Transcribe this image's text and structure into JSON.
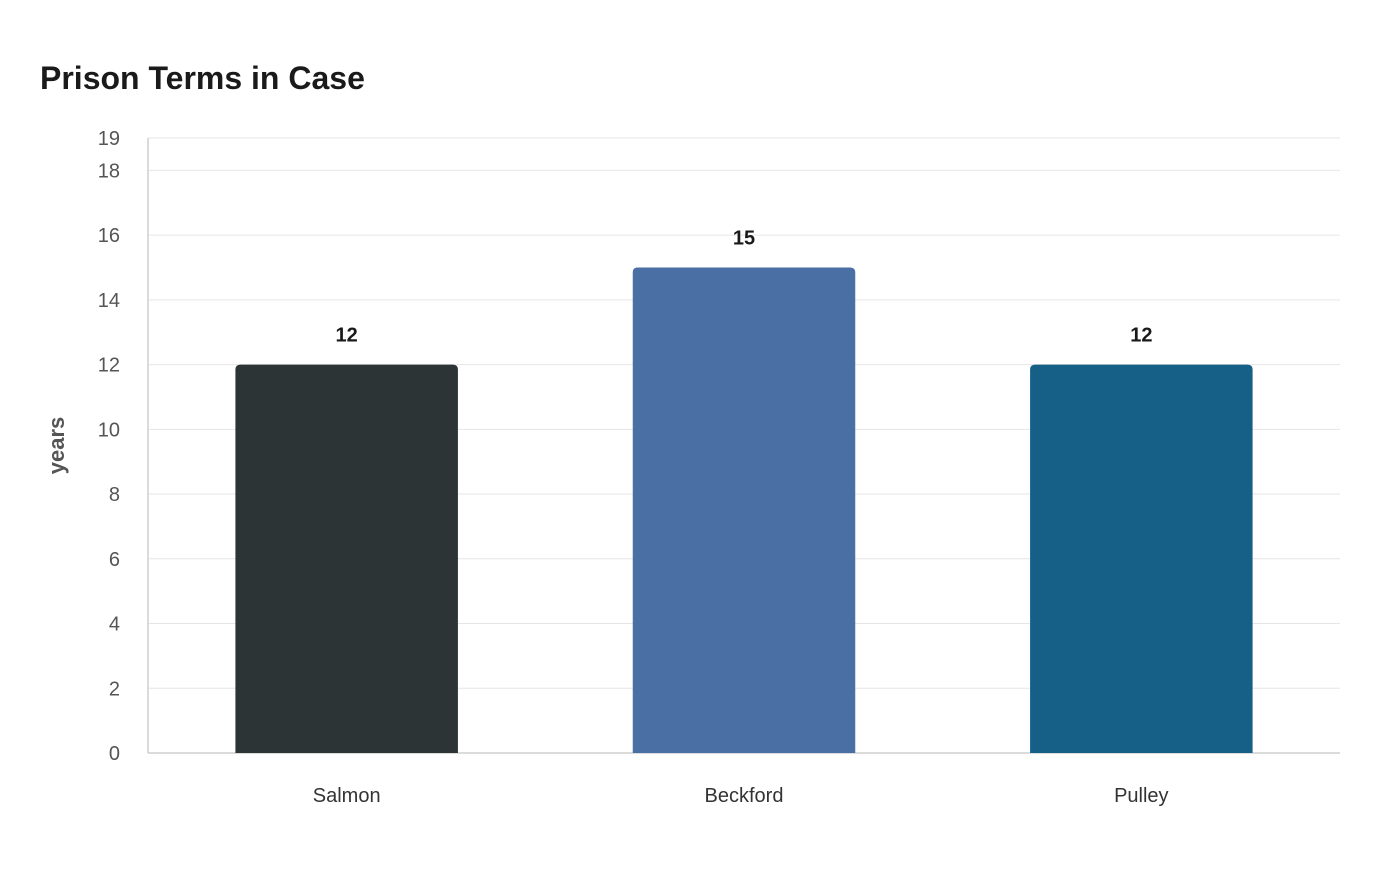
{
  "chart_data": {
    "type": "bar",
    "title": "Prison Terms in Case",
    "xlabel": "",
    "ylabel": "years",
    "categories": [
      "Salmon",
      "Beckford",
      "Pulley"
    ],
    "values": [
      12,
      15,
      12
    ],
    "value_labels": [
      "12",
      "15",
      "12"
    ],
    "colors": [
      "#2d3436",
      "#4a6fa5",
      "#166088"
    ],
    "ylim": [
      0,
      19
    ],
    "yticks": [
      0,
      2,
      4,
      6,
      8,
      10,
      12,
      14,
      16,
      18,
      19
    ],
    "grid": true,
    "legend": "none"
  }
}
